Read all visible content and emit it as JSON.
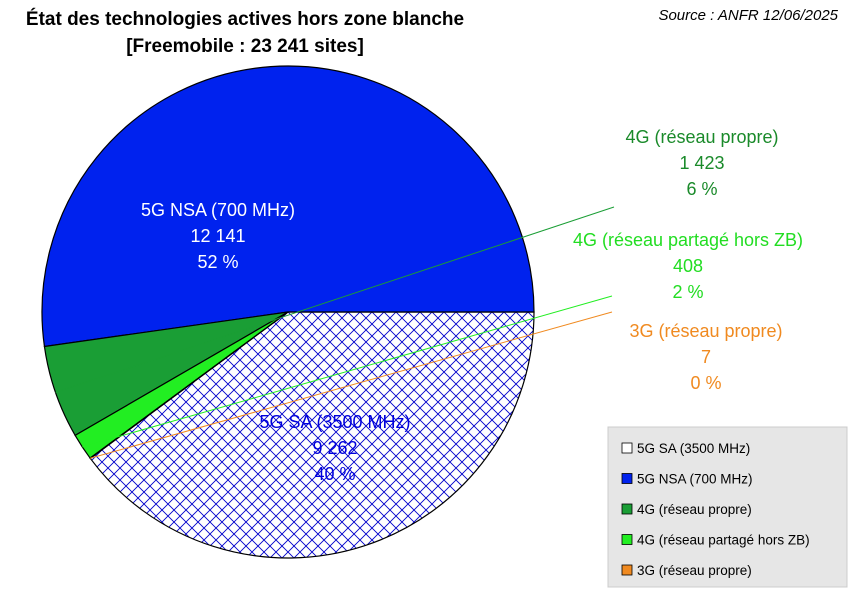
{
  "chart_data": {
    "type": "pie",
    "title": "État des technologies actives hors zone blanche",
    "subtitle": "[Freemobile : 23 241 sites]",
    "source": "Source : ANFR 12/06/2025",
    "legend_position": "bottom-right",
    "series": [
      {
        "name": "5G SA (3500 MHz)",
        "value": 9262,
        "value_label": "9 262",
        "percent_label": "40 %",
        "color": "#ffffff",
        "pattern": "crosshatch",
        "label_color": "#0000dd"
      },
      {
        "name": "5G NSA (700 MHz)",
        "value": 12141,
        "value_label": "12 141",
        "percent_label": "52 %",
        "color": "#0022ee",
        "label_color": "#ffffff"
      },
      {
        "name": "4G (réseau propre)",
        "value": 1423,
        "value_label": "1 423",
        "percent_label": "6 %",
        "color": "#1a9e35",
        "label_color": "#1a8a2a"
      },
      {
        "name": "4G (réseau partagé hors ZB)",
        "value": 408,
        "value_label": "408",
        "percent_label": "2 %",
        "color": "#22ee22",
        "label_color": "#22dd22"
      },
      {
        "name": "3G (réseau propre)",
        "value": 7,
        "value_label": "7",
        "percent_label": "0 %",
        "color": "#f08a20",
        "label_color": "#f08a20"
      }
    ]
  }
}
